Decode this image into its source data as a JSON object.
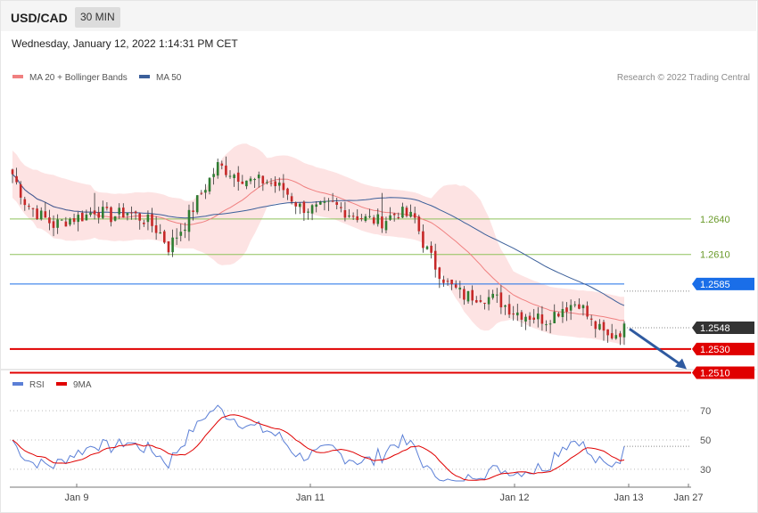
{
  "header": {
    "symbol": "USD/CAD",
    "timeframe": "30 MIN"
  },
  "datetime": "Wednesday, January 12, 2022 1:14:31 PM CET",
  "legend": {
    "ma20": "MA 20 + Bollinger Bands",
    "ma50": "MA 50"
  },
  "credit": "Research © 2022 Trading Central",
  "rsi_legend": {
    "rsi": "RSI",
    "ma9": "9MA"
  },
  "colors": {
    "ma20": "#f08080",
    "band": "#fde3e3",
    "ma50": "#3b5f9a",
    "bull": "#2e7d32",
    "bear": "#c62828",
    "support": "#e00000",
    "resistance": "#8fc25b",
    "pivot": "#1a6ee8",
    "last": "#333333",
    "rsi": "#5b7fd6",
    "rsi_ma": "#e00000",
    "arrow": "#2f5aa0"
  },
  "chart_data": [
    {
      "type": "candlestick",
      "title": "USD/CAD",
      "ylim": [
        1.249,
        1.278
      ],
      "x_ticks": [
        "Jan 9",
        "Jan 11",
        "Jan 12",
        "Jan 13",
        "Jan 27"
      ],
      "levels": [
        {
          "label": "1.2640",
          "value": 1.264,
          "kind": "resistance"
        },
        {
          "label": "1.2610",
          "value": 1.261,
          "kind": "resistance"
        },
        {
          "label": "1.2585",
          "value": 1.2585,
          "kind": "pivot"
        },
        {
          "label": "1.2548",
          "value": 1.2548,
          "kind": "last"
        },
        {
          "label": "1.2530",
          "value": 1.253,
          "kind": "support"
        },
        {
          "label": "1.2510",
          "value": 1.251,
          "kind": "support"
        }
      ],
      "arrow": {
        "from": 1.2547,
        "to": 1.251,
        "direction": "down"
      },
      "anchors": [
        [
          0,
          1.2678
        ],
        [
          3,
          1.2655
        ],
        [
          6,
          1.2645
        ],
        [
          10,
          1.2635
        ],
        [
          14,
          1.264
        ],
        [
          18,
          1.2643
        ],
        [
          20,
          1.2648
        ],
        [
          24,
          1.2642
        ],
        [
          28,
          1.2646
        ],
        [
          33,
          1.2638
        ],
        [
          36,
          1.2628
        ],
        [
          38,
          1.2616
        ],
        [
          42,
          1.2636
        ],
        [
          46,
          1.2662
        ],
        [
          50,
          1.2685
        ],
        [
          54,
          1.2678
        ],
        [
          58,
          1.2672
        ],
        [
          62,
          1.2672
        ],
        [
          66,
          1.2665
        ],
        [
          70,
          1.265
        ],
        [
          74,
          1.2648
        ],
        [
          78,
          1.2652
        ],
        [
          82,
          1.2645
        ],
        [
          86,
          1.264
        ],
        [
          90,
          1.2638
        ],
        [
          94,
          1.2646
        ],
        [
          98,
          1.264
        ],
        [
          100,
          1.262
        ],
        [
          103,
          1.26
        ],
        [
          106,
          1.2585
        ],
        [
          110,
          1.2575
        ],
        [
          114,
          1.2575
        ],
        [
          118,
          1.2572
        ],
        [
          122,
          1.2562
        ],
        [
          126,
          1.2558
        ],
        [
          130,
          1.2555
        ],
        [
          134,
          1.2565
        ],
        [
          138,
          1.257
        ],
        [
          141,
          1.2552
        ],
        [
          145,
          1.254
        ],
        [
          149,
          1.2547
        ]
      ],
      "spikes": [
        [
          20,
          1.2662
        ],
        [
          26,
          1.264
        ],
        [
          90,
          1.2662
        ],
        [
          144,
          1.2537
        ]
      ]
    },
    {
      "type": "line",
      "title": "RSI",
      "ylim": [
        22,
        78
      ],
      "y_ticks": [
        30,
        50,
        70
      ],
      "series": [
        {
          "name": "RSI",
          "key": "rsi"
        },
        {
          "name": "9MA",
          "key": "ma9"
        }
      ]
    }
  ]
}
